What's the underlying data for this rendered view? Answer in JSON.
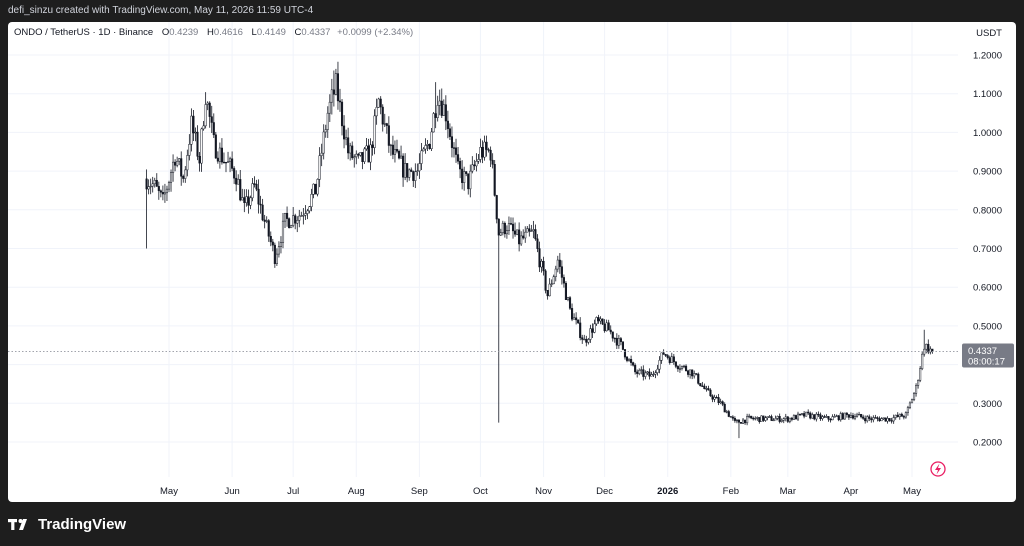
{
  "header": {
    "credit": "defi_sinzu created with TradingView.com, May 11, 2026 11:59 UTC-4"
  },
  "legend": {
    "symbol": "ONDO / TetherUS · 1D · Binance",
    "o_label": "O",
    "o": "0.4239",
    "h_label": "H",
    "h": "0.4616",
    "l_label": "L",
    "l": "0.4149",
    "c_label": "C",
    "c": "0.4337",
    "change": "+0.0099 (+2.34%)"
  },
  "footer": {
    "brand": "TradingView"
  },
  "colors": {
    "candle": "#131722",
    "grid": "#f0f3fa",
    "price_tag": "#787b86",
    "axis_text": "#131722"
  },
  "chart_data": {
    "type": "candlestick",
    "currency": "USDT",
    "ylim": [
      0.12,
      1.23
    ],
    "yticks": [
      "1.2000",
      "1.1000",
      "1.0000",
      "0.9000",
      "0.8000",
      "0.7000",
      "0.6000",
      "0.5000",
      "0.3000",
      "0.2000"
    ],
    "xticks": [
      "May",
      "Jun",
      "Jul",
      "Aug",
      "Sep",
      "Oct",
      "Nov",
      "Dec",
      "2026",
      "Feb",
      "Mar",
      "Apr",
      "May"
    ],
    "last_price": "0.4337",
    "countdown": "08:00:17",
    "anchors": [
      {
        "date": "2025-04-20",
        "price": 0.88
      },
      {
        "date": "2025-04-24",
        "price": 0.86
      },
      {
        "date": "2025-04-28",
        "price": 0.82
      },
      {
        "date": "2025-05-04",
        "price": 0.94
      },
      {
        "date": "2025-05-08",
        "price": 0.88
      },
      {
        "date": "2025-05-12",
        "price": 1.02
      },
      {
        "date": "2025-05-16",
        "price": 0.93
      },
      {
        "date": "2025-05-19",
        "price": 1.1
      },
      {
        "date": "2025-05-23",
        "price": 0.97
      },
      {
        "date": "2025-05-28",
        "price": 0.93
      },
      {
        "date": "2025-06-03",
        "price": 0.89
      },
      {
        "date": "2025-06-07",
        "price": 0.8
      },
      {
        "date": "2025-06-12",
        "price": 0.86
      },
      {
        "date": "2025-06-17",
        "price": 0.77
      },
      {
        "date": "2025-06-22",
        "price": 0.68
      },
      {
        "date": "2025-06-27",
        "price": 0.77
      },
      {
        "date": "2025-07-05",
        "price": 0.79
      },
      {
        "date": "2025-07-12",
        "price": 0.85
      },
      {
        "date": "2025-07-18",
        "price": 1.05
      },
      {
        "date": "2025-07-22",
        "price": 1.12
      },
      {
        "date": "2025-07-28",
        "price": 0.95
      },
      {
        "date": "2025-08-02",
        "price": 0.92
      },
      {
        "date": "2025-08-08",
        "price": 0.95
      },
      {
        "date": "2025-08-12",
        "price": 1.08
      },
      {
        "date": "2025-08-18",
        "price": 0.95
      },
      {
        "date": "2025-08-25",
        "price": 0.9
      },
      {
        "date": "2025-08-31",
        "price": 0.9
      },
      {
        "date": "2025-09-06",
        "price": 0.98
      },
      {
        "date": "2025-09-10",
        "price": 1.1
      },
      {
        "date": "2025-09-14",
        "price": 1.05
      },
      {
        "date": "2025-09-20",
        "price": 0.9
      },
      {
        "date": "2025-09-25",
        "price": 0.87
      },
      {
        "date": "2025-10-01",
        "price": 0.95
      },
      {
        "date": "2025-10-06",
        "price": 0.95
      },
      {
        "date": "2025-10-10",
        "price": 0.74
      },
      {
        "date": "2025-10-14",
        "price": 0.76
      },
      {
        "date": "2025-10-20",
        "price": 0.72
      },
      {
        "date": "2025-10-27",
        "price": 0.74
      },
      {
        "date": "2025-11-03",
        "price": 0.58
      },
      {
        "date": "2025-11-08",
        "price": 0.67
      },
      {
        "date": "2025-11-14",
        "price": 0.54
      },
      {
        "date": "2025-11-21",
        "price": 0.46
      },
      {
        "date": "2025-11-27",
        "price": 0.51
      },
      {
        "date": "2025-12-03",
        "price": 0.49
      },
      {
        "date": "2025-12-09",
        "price": 0.45
      },
      {
        "date": "2025-12-16",
        "price": 0.38
      },
      {
        "date": "2025-12-24",
        "price": 0.37
      },
      {
        "date": "2025-12-30",
        "price": 0.43
      },
      {
        "date": "2026-01-06",
        "price": 0.4
      },
      {
        "date": "2026-01-13",
        "price": 0.38
      },
      {
        "date": "2026-01-20",
        "price": 0.33
      },
      {
        "date": "2026-01-27",
        "price": 0.3
      },
      {
        "date": "2026-02-03",
        "price": 0.25
      },
      {
        "date": "2026-02-10",
        "price": 0.26
      },
      {
        "date": "2026-02-20",
        "price": 0.26
      },
      {
        "date": "2026-03-01",
        "price": 0.26
      },
      {
        "date": "2026-03-10",
        "price": 0.27
      },
      {
        "date": "2026-03-20",
        "price": 0.26
      },
      {
        "date": "2026-04-01",
        "price": 0.27
      },
      {
        "date": "2026-04-10",
        "price": 0.26
      },
      {
        "date": "2026-04-20",
        "price": 0.26
      },
      {
        "date": "2026-04-28",
        "price": 0.27
      },
      {
        "date": "2026-05-03",
        "price": 0.34
      },
      {
        "date": "2026-05-07",
        "price": 0.45
      },
      {
        "date": "2026-05-11",
        "price": 0.4337
      }
    ],
    "notable_wicks": [
      {
        "date": "2025-04-20",
        "low": 0.7
      },
      {
        "date": "2025-07-21",
        "high": 1.16
      },
      {
        "date": "2025-09-09",
        "high": 1.13
      },
      {
        "date": "2025-10-10",
        "low": 0.25
      },
      {
        "date": "2026-02-05",
        "low": 0.21
      },
      {
        "date": "2026-05-07",
        "high": 0.49
      }
    ]
  }
}
